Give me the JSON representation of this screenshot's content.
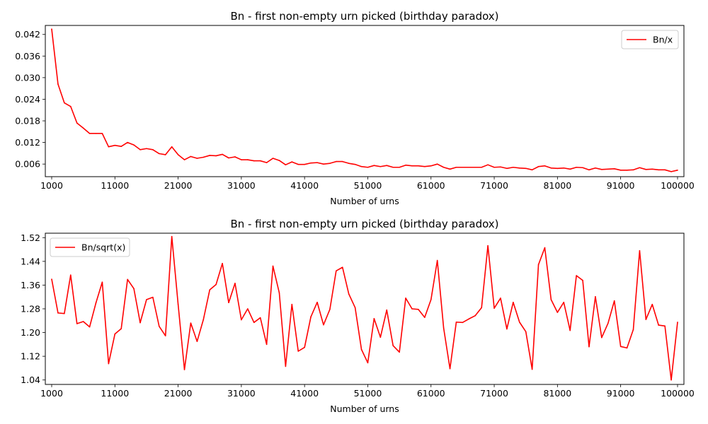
{
  "chart_data": [
    {
      "type": "line",
      "title": "Bn - first non-empty urn picked (birthday paradox)",
      "xlabel": "Number of urns",
      "ylabel": "",
      "xlim": [
        1000,
        100000
      ],
      "ylim": [
        0.0025,
        0.0445
      ],
      "xticks": [
        "1000",
        "11000",
        "21000",
        "31000",
        "41000",
        "51000",
        "61000",
        "71000",
        "81000",
        "91000",
        "100000"
      ],
      "xtick_values": [
        1000,
        11000,
        21000,
        31000,
        41000,
        51000,
        61000,
        71000,
        81000,
        91000,
        100000
      ],
      "yticks": [
        "0.006",
        "0.012",
        "0.018",
        "0.024",
        "0.030",
        "0.036",
        "0.042"
      ],
      "ytick_values": [
        0.006,
        0.012,
        0.018,
        0.024,
        0.03,
        0.036,
        0.042
      ],
      "grid": false,
      "legend": "upper right",
      "color": "#ff0000",
      "series": [
        {
          "name": "Bn/x",
          "color": "#ff0000",
          "x": [
            1000,
            2000,
            3000,
            4000,
            5000,
            6000,
            7000,
            8000,
            9000,
            10000,
            11000,
            12000,
            13000,
            14000,
            15000,
            16000,
            17000,
            18000,
            19000,
            20000,
            21000,
            22000,
            23000,
            24000,
            25000,
            26000,
            27000,
            28000,
            29000,
            30000,
            31000,
            32000,
            33000,
            34000,
            35000,
            36000,
            37000,
            38000,
            39000,
            40000,
            41000,
            42000,
            43000,
            44000,
            45000,
            46000,
            47000,
            48000,
            49000,
            50000,
            51000,
            52000,
            53000,
            54000,
            55000,
            56000,
            57000,
            58000,
            59000,
            60000,
            61000,
            62000,
            63000,
            64000,
            65000,
            66000,
            67000,
            68000,
            69000,
            70000,
            71000,
            72000,
            73000,
            74000,
            75000,
            76000,
            77000,
            78000,
            79000,
            80000,
            81000,
            82000,
            83000,
            84000,
            85000,
            86000,
            87000,
            88000,
            89000,
            90000,
            91000,
            92000,
            93000,
            94000,
            95000,
            96000,
            97000,
            98000,
            99000,
            100000
          ],
          "y": [
            0.0435,
            0.0282,
            0.023,
            0.022,
            0.0174,
            0.016,
            0.0145,
            0.0145,
            0.0145,
            0.0108,
            0.0112,
            0.0109,
            0.012,
            0.0113,
            0.01,
            0.0103,
            0.01,
            0.0089,
            0.0086,
            0.0108,
            0.0086,
            0.0072,
            0.0081,
            0.0076,
            0.0079,
            0.0084,
            0.0083,
            0.0087,
            0.0077,
            0.008,
            0.0072,
            0.0072,
            0.0069,
            0.0069,
            0.0064,
            0.0076,
            0.007,
            0.0058,
            0.0066,
            0.0059,
            0.0059,
            0.0063,
            0.0064,
            0.006,
            0.0062,
            0.0067,
            0.0067,
            0.0062,
            0.0059,
            0.0053,
            0.0051,
            0.0056,
            0.0053,
            0.0056,
            0.0051,
            0.0051,
            0.0057,
            0.0055,
            0.0055,
            0.0053,
            0.0055,
            0.006,
            0.0051,
            0.0046,
            0.0051,
            0.0051,
            0.0051,
            0.0051,
            0.0051,
            0.0058,
            0.0051,
            0.0052,
            0.0048,
            0.0051,
            0.0049,
            0.0048,
            0.0044,
            0.0053,
            0.0055,
            0.0049,
            0.0048,
            0.0049,
            0.0046,
            0.0051,
            0.005,
            0.0044,
            0.0049,
            0.0045,
            0.0046,
            0.0047,
            0.0043,
            0.0043,
            0.0044,
            0.005,
            0.0045,
            0.0046,
            0.0044,
            0.0044,
            0.0039,
            0.0043
          ]
        }
      ]
    },
    {
      "type": "line",
      "title": "Bn - first non-empty urn picked (birthday paradox)",
      "xlabel": "Number of urns",
      "ylabel": "",
      "xlim": [
        1000,
        100000
      ],
      "ylim": [
        1.025,
        1.535
      ],
      "xticks": [
        "1000",
        "11000",
        "21000",
        "31000",
        "41000",
        "51000",
        "61000",
        "71000",
        "81000",
        "91000",
        "100000"
      ],
      "xtick_values": [
        1000,
        11000,
        21000,
        31000,
        41000,
        51000,
        61000,
        71000,
        81000,
        91000,
        100000
      ],
      "yticks": [
        "1.04",
        "1.12",
        "1.20",
        "1.28",
        "1.36",
        "1.44",
        "1.52"
      ],
      "ytick_values": [
        1.04,
        1.12,
        1.2,
        1.28,
        1.36,
        1.44,
        1.52
      ],
      "grid": false,
      "legend": "upper left",
      "color": "#ff0000",
      "series": [
        {
          "name": "Bn/sqrt(x)",
          "color": "#ff0000",
          "x": [
            1000,
            2000,
            3000,
            4000,
            5000,
            6000,
            7000,
            8000,
            9000,
            10000,
            11000,
            12000,
            13000,
            14000,
            15000,
            16000,
            17000,
            18000,
            19000,
            20000,
            21000,
            22000,
            23000,
            24000,
            25000,
            26000,
            27000,
            28000,
            29000,
            30000,
            31000,
            32000,
            33000,
            34000,
            35000,
            36000,
            37000,
            38000,
            39000,
            40000,
            41000,
            42000,
            43000,
            44000,
            45000,
            46000,
            47000,
            48000,
            49000,
            50000,
            51000,
            52000,
            53000,
            54000,
            55000,
            56000,
            57000,
            58000,
            59000,
            60000,
            61000,
            62000,
            63000,
            64000,
            65000,
            66000,
            67000,
            68000,
            69000,
            70000,
            71000,
            72000,
            73000,
            74000,
            75000,
            76000,
            77000,
            78000,
            79000,
            80000,
            81000,
            82000,
            83000,
            84000,
            85000,
            86000,
            87000,
            88000,
            89000,
            90000,
            91000,
            92000,
            93000,
            94000,
            95000,
            96000,
            97000,
            98000,
            99000,
            100000
          ],
          "y": [
            1.38,
            1.266,
            1.264,
            1.394,
            1.23,
            1.237,
            1.219,
            1.3,
            1.37,
            1.095,
            1.195,
            1.213,
            1.379,
            1.348,
            1.233,
            1.311,
            1.319,
            1.221,
            1.189,
            1.524,
            1.295,
            1.075,
            1.232,
            1.17,
            1.244,
            1.344,
            1.362,
            1.433,
            1.301,
            1.366,
            1.243,
            1.28,
            1.234,
            1.25,
            1.16,
            1.424,
            1.334,
            1.086,
            1.295,
            1.137,
            1.15,
            1.253,
            1.302,
            1.226,
            1.278,
            1.408,
            1.42,
            1.33,
            1.284,
            1.143,
            1.098,
            1.247,
            1.184,
            1.276,
            1.156,
            1.134,
            1.316,
            1.28,
            1.278,
            1.251,
            1.311,
            1.443,
            1.215,
            1.078,
            1.235,
            1.234,
            1.246,
            1.257,
            1.284,
            1.493,
            1.282,
            1.316,
            1.212,
            1.302,
            1.235,
            1.203,
            1.076,
            1.429,
            1.486,
            1.311,
            1.268,
            1.302,
            1.207,
            1.392,
            1.376,
            1.152,
            1.321,
            1.183,
            1.231,
            1.307,
            1.153,
            1.148,
            1.21,
            1.476,
            1.244,
            1.295,
            1.225,
            1.222,
            1.04,
            1.235
          ]
        }
      ]
    }
  ]
}
